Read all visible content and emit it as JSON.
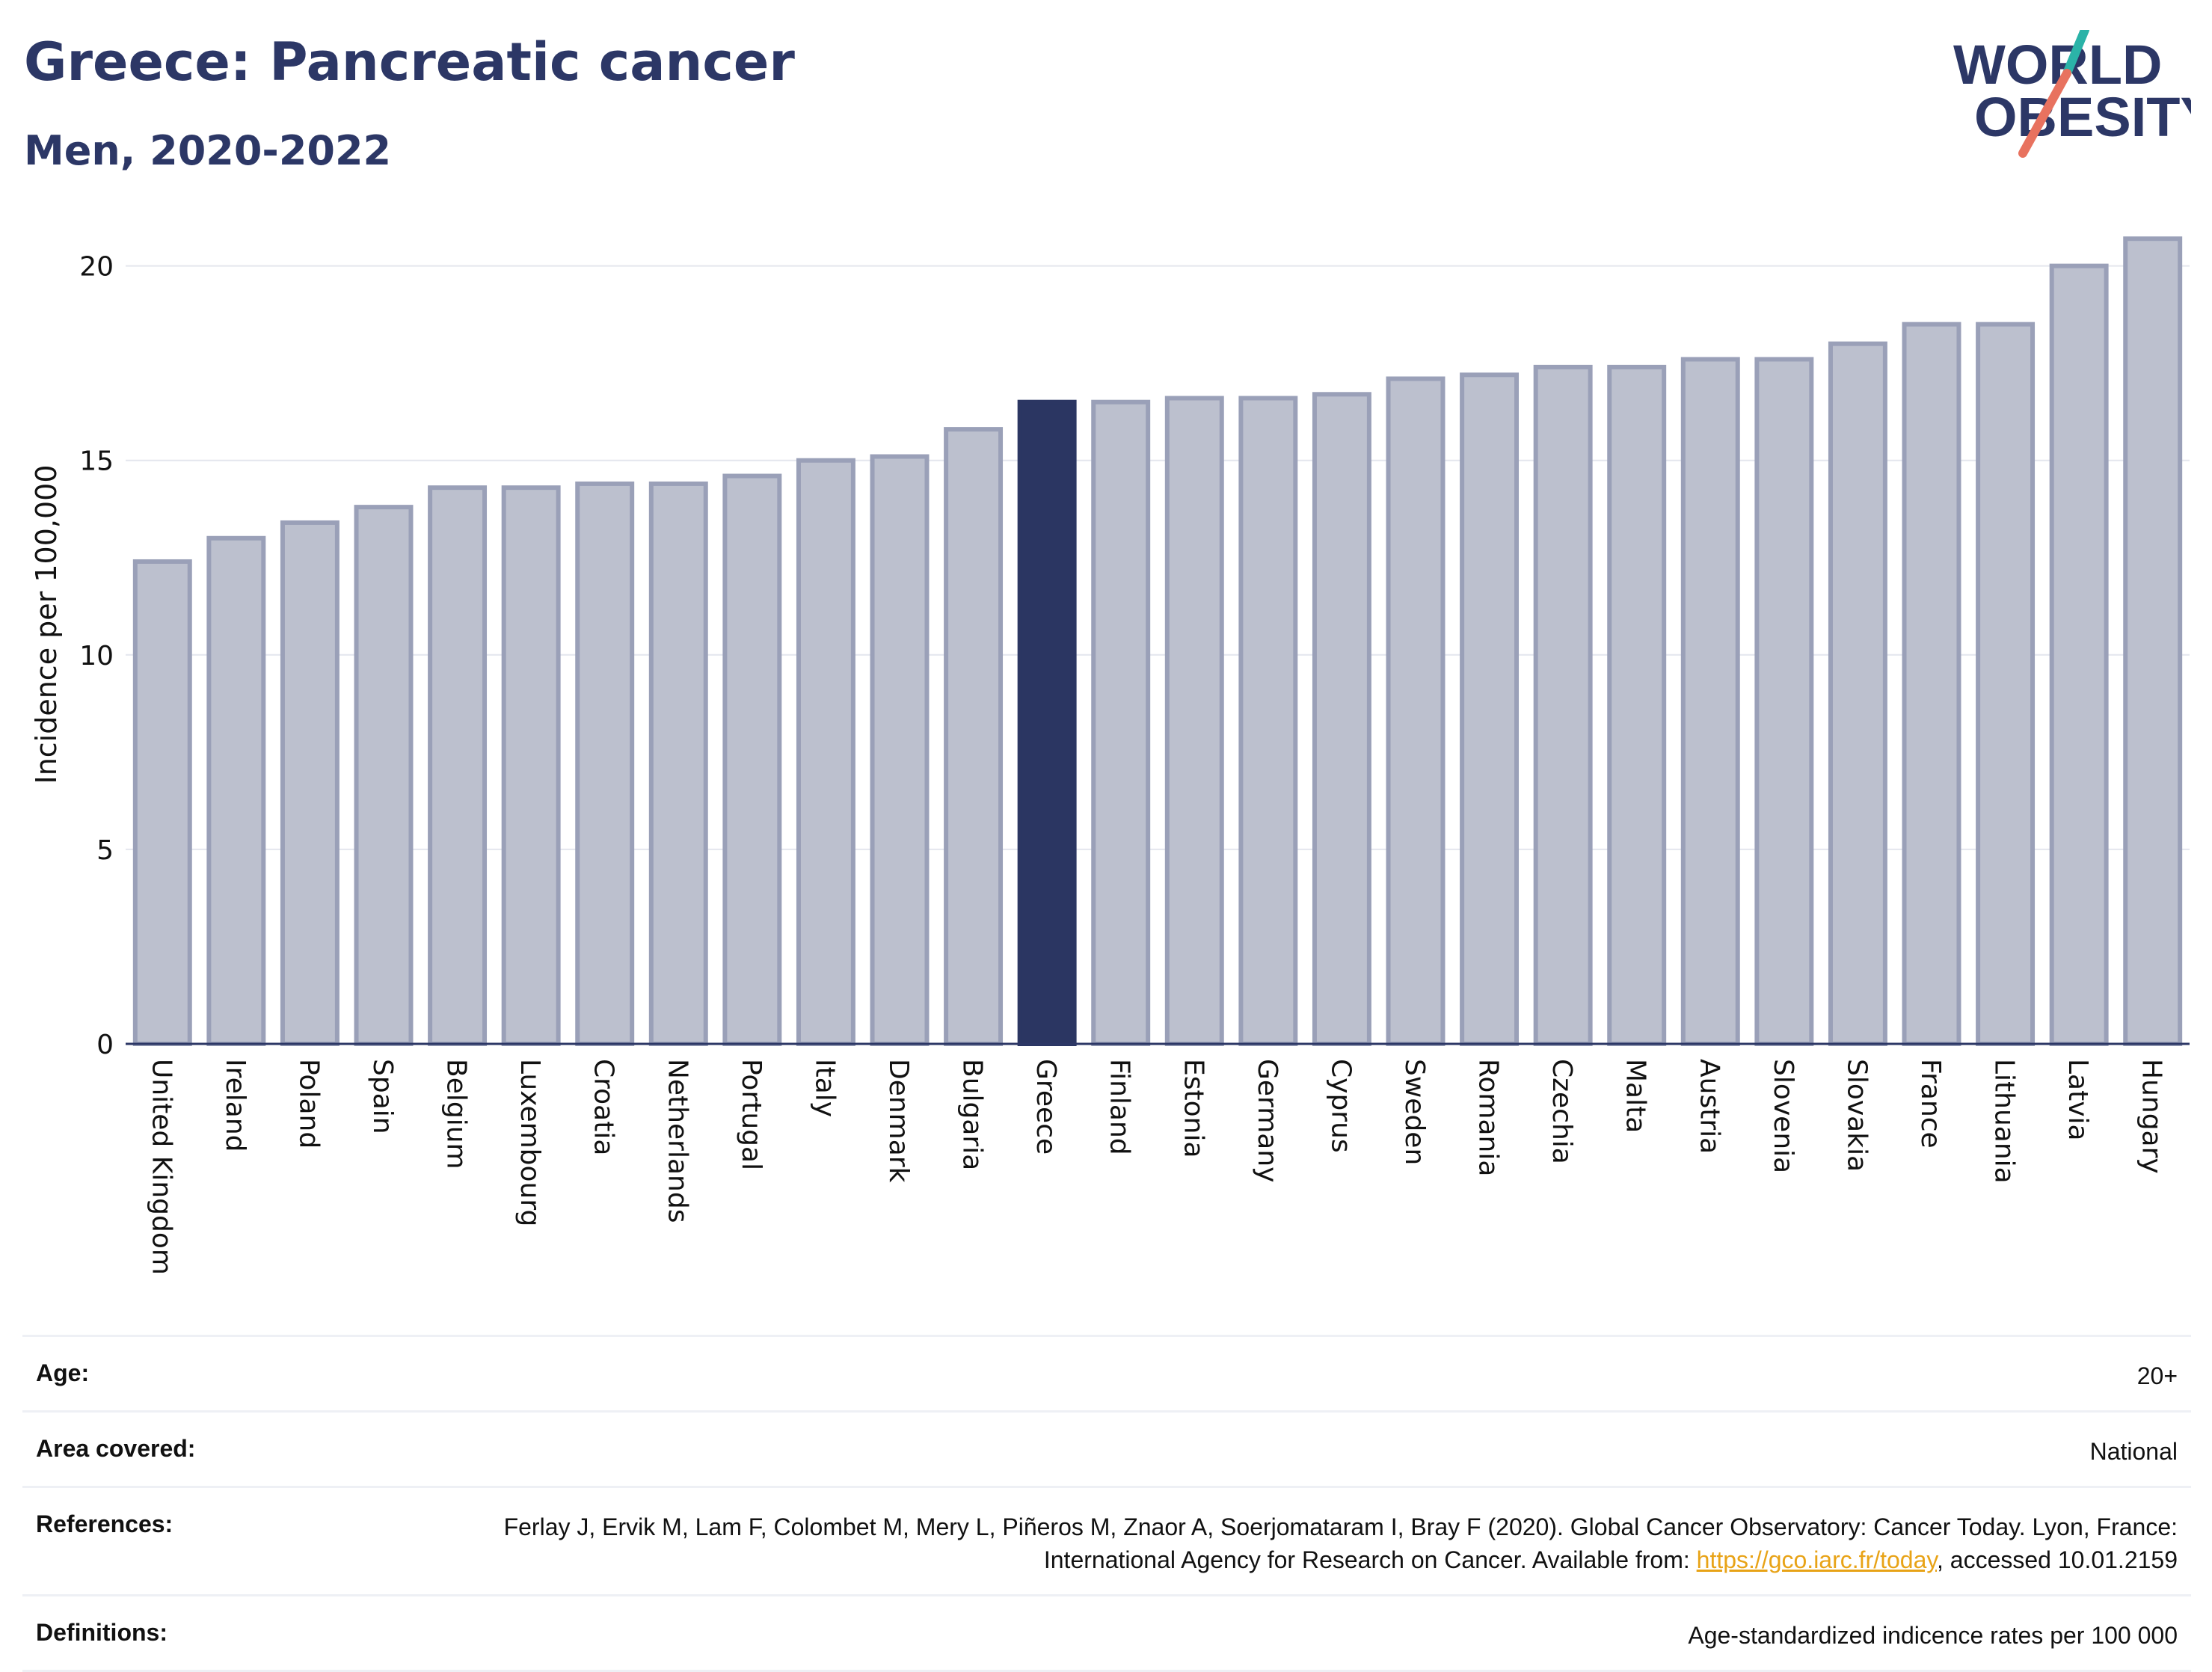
{
  "header": {
    "title": "Greece: Pancreatic cancer",
    "subtitle": "Men, 2020-2022"
  },
  "logo": {
    "line1": "WORLD",
    "line2": "OBESITY"
  },
  "colors": {
    "highlight": "#2b3662",
    "bar_fill": "#bcc0ce",
    "bar_stroke": "#9aa0b8",
    "grid": "#e4e6ee",
    "logo_teal": "#2bb3a8",
    "logo_coral": "#e8725f"
  },
  "chart_data": {
    "type": "bar",
    "ylabel": "Incidence per 100,000",
    "xlabel": "",
    "ylim": [
      0,
      21.3
    ],
    "yticks": [
      0,
      5,
      10,
      15,
      20
    ],
    "grid": true,
    "highlight": "Greece",
    "categories": [
      "United Kingdom",
      "Ireland",
      "Poland",
      "Spain",
      "Belgium",
      "Luxembourg",
      "Croatia",
      "Netherlands",
      "Portugal",
      "Italy",
      "Denmark",
      "Bulgaria",
      "Greece",
      "Finland",
      "Estonia",
      "Germany",
      "Cyprus",
      "Sweden",
      "Romania",
      "Czechia",
      "Malta",
      "Austria",
      "Slovenia",
      "Slovakia",
      "France",
      "Lithuania",
      "Latvia",
      "Hungary"
    ],
    "values": [
      12.4,
      13.0,
      13.4,
      13.8,
      14.3,
      14.3,
      14.4,
      14.4,
      14.6,
      15.0,
      15.1,
      15.8,
      16.5,
      16.5,
      16.6,
      16.6,
      16.7,
      17.1,
      17.2,
      17.4,
      17.4,
      17.6,
      17.6,
      18.0,
      18.5,
      18.5,
      20.0,
      20.7
    ]
  },
  "info": {
    "age_label": "Age:",
    "age_value": "20+",
    "area_label": "Area covered:",
    "area_value": "National",
    "references_label": "References:",
    "references_text": "Ferlay J, Ervik M, Lam F, Colombet M, Mery L, Piñeros M, Znaor A, Soerjomataram I, Bray F (2020). Global Cancer Observatory: Cancer Today. Lyon, France: International Agency for Research on Cancer. Available from: ",
    "references_link": "https://gco.iarc.fr/today",
    "references_suffix": ", accessed 10.01.2159",
    "definitions_label": "Definitions:",
    "definitions_value": "Age-standardized indicence rates per 100 000"
  }
}
